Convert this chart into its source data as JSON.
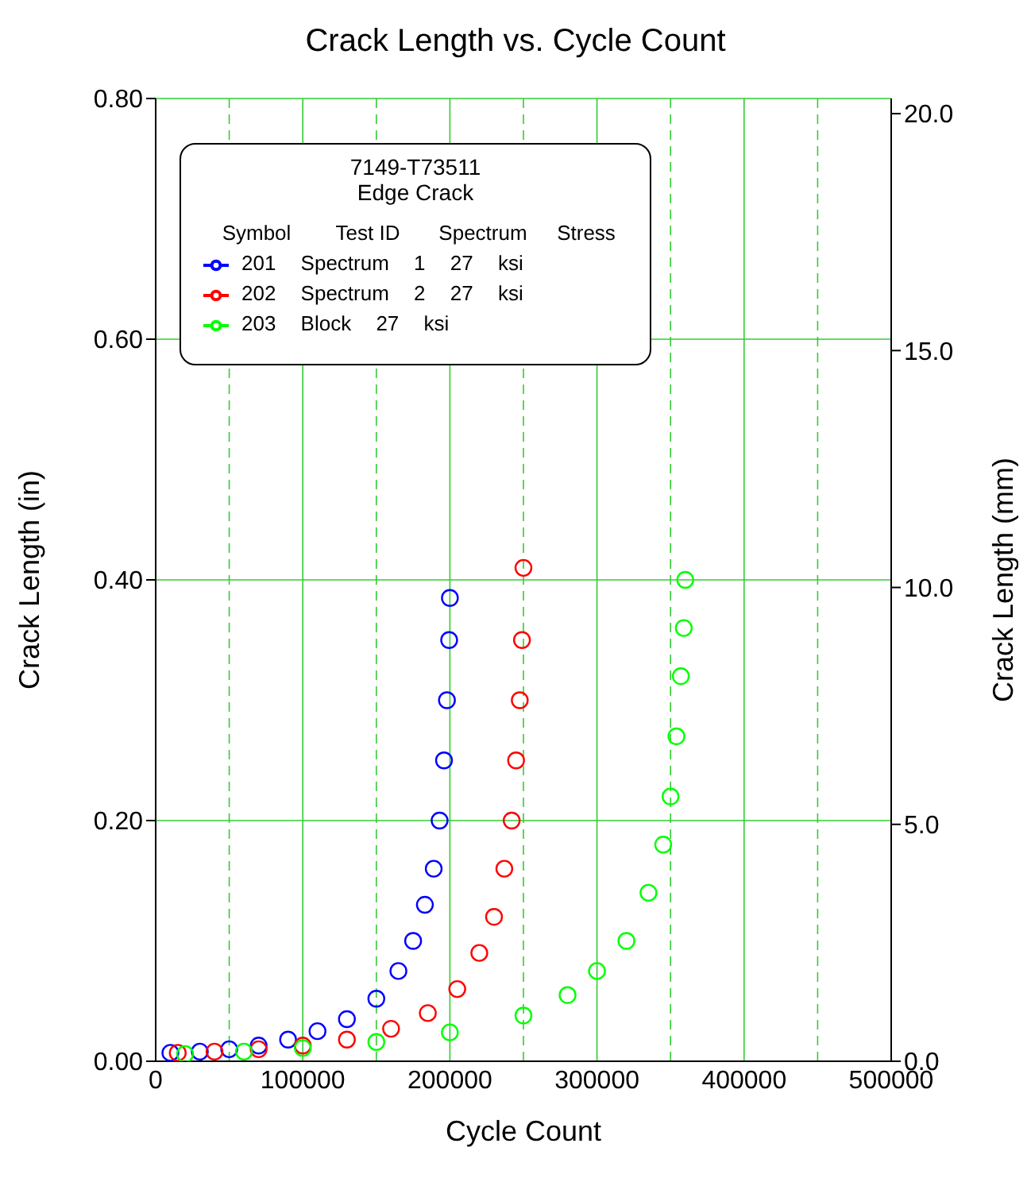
{
  "chart_data": {
    "type": "scatter",
    "title": "Crack Length vs. Cycle Count",
    "xlabel": "Cycle Count",
    "ylabel": "Crack Length (in)",
    "y2label": "Crack Length (mm)",
    "legend_title": "7149-T73511\nEdge Crack",
    "annotations": [
      "Symbol",
      "Test ID",
      "Spectrum",
      "Stress"
    ],
    "xlim": [
      0,
      500000
    ],
    "xticks": [
      0,
      {
        "value": 50000,
        "label": null
      },
      100000,
      {
        "value": 150000,
        "label": null
      },
      200000,
      {
        "value": 250000,
        "label": null
      },
      300000,
      {
        "value": 350000,
        "label": null
      },
      400000,
      {
        "value": 450000,
        "label": null
      },
      500000
    ],
    "ylim": [
      0,
      0.8
    ],
    "yticks": [
      {
        "value": 0,
        "label": "0.00"
      },
      {
        "value": 0.2,
        "label": "0.20"
      },
      {
        "value": 0.4,
        "label": "0.40"
      },
      {
        "value": 0.6,
        "label": "0.60"
      },
      {
        "value": 0.8,
        "label": "0.80"
      }
    ],
    "y2lim": [
      0,
      20.32
    ],
    "y2ticks": [
      {
        "value": 0,
        "label": "0.0"
      },
      {
        "value": 5,
        "label": "5.0"
      },
      {
        "value": 10,
        "label": "10.0"
      },
      {
        "value": 15,
        "label": "15.0"
      },
      {
        "value": 20,
        "label": "20.0"
      }
    ],
    "grid": true,
    "legend": "top left",
    "marker": "circle",
    "series": [
      {
        "name": "201 Spectrum 1 27 ksi",
        "color": "#0000ff",
        "x": [
          10000,
          30000,
          50000,
          70000,
          90000,
          110000,
          130000,
          150000,
          165000,
          175000,
          183000,
          189000,
          193000,
          196000,
          198000,
          199500,
          200000
        ],
        "values": [
          0.007,
          0.008,
          0.01,
          0.013,
          0.018,
          0.025,
          0.035,
          0.052,
          0.075,
          0.1,
          0.13,
          0.16,
          0.2,
          0.25,
          0.3,
          0.35,
          0.385
        ]
      },
      {
        "name": "202 Spectrum 2 27 ksi",
        "color": "#ff0000",
        "x": [
          15000,
          40000,
          70000,
          100000,
          130000,
          160000,
          185000,
          205000,
          220000,
          230000,
          237000,
          242000,
          245000,
          247500,
          249000,
          250000
        ],
        "values": [
          0.007,
          0.008,
          0.01,
          0.013,
          0.018,
          0.027,
          0.04,
          0.06,
          0.09,
          0.12,
          0.16,
          0.2,
          0.25,
          0.3,
          0.35,
          0.41
        ]
      },
      {
        "name": "203 Block 27 ksi",
        "color": "#00ff00",
        "x": [
          20000,
          60000,
          100000,
          150000,
          200000,
          250000,
          280000,
          300000,
          320000,
          335000,
          345000,
          350000,
          354000,
          357000,
          359000,
          360000
        ],
        "values": [
          0.006,
          0.008,
          0.011,
          0.016,
          0.024,
          0.038,
          0.055,
          0.075,
          0.1,
          0.14,
          0.18,
          0.22,
          0.27,
          0.32,
          0.36,
          0.4
        ]
      }
    ]
  }
}
